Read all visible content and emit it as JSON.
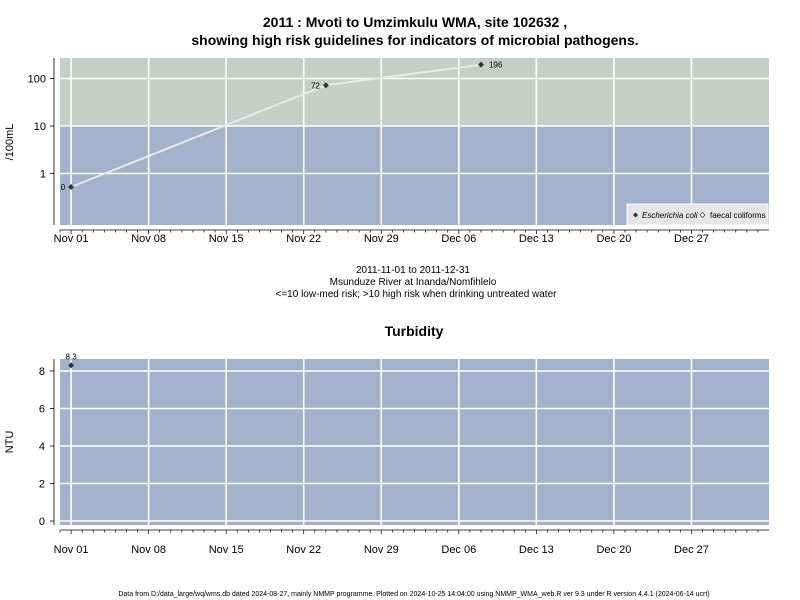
{
  "chart_data": [
    {
      "type": "scatter",
      "title_line1": "2011 : Mvoti to Umzimkulu WMA, site 102632 ,",
      "title_line2": "showing high risk guidelines for indicators of microbial pathogens.",
      "ylabel": "/100mL",
      "y_scale": "log",
      "y_ticks": [
        "1",
        "10",
        "100"
      ],
      "x_ticks": [
        "Nov 01",
        "Nov 08",
        "Nov 15",
        "Nov 22",
        "Nov 29",
        "Dec 06",
        "Dec 13",
        "Dec 20",
        "Dec 27"
      ],
      "x_range": [
        "2011-10-31",
        "2012-01-03"
      ],
      "bands": [
        {
          "label": "low-med risk",
          "range": [
            0,
            10
          ],
          "color": "#a2b2cb"
        },
        {
          "label": "high risk",
          "range": [
            10,
            300
          ],
          "color": "#c5cfc5"
        }
      ],
      "series": [
        {
          "name": "Escherichia coli",
          "points": [
            {
              "x": "2011-11-01",
              "y": 0,
              "label": "0"
            },
            {
              "x": "2011-11-24",
              "y": 72,
              "label": "72"
            },
            {
              "x": "2011-12-08",
              "y": 196,
              "label": "196"
            }
          ]
        },
        {
          "name": "faecal coliforms",
          "points": []
        }
      ],
      "legend": {
        "placement": "bottom-right",
        "items": [
          "Escherichia coli",
          "faecal coliforms"
        ]
      },
      "caption_line1": "2011-11-01 to 2011-12-31",
      "caption_line2": "Msunduze River at Inanda/Nomfihlelo",
      "caption_line3": "<=10 low-med risk; >10 high risk when drinking untreated water"
    },
    {
      "type": "scatter",
      "title": "Turbidity",
      "ylabel": "NTU",
      "ylim": [
        -0.5,
        8.7
      ],
      "y_ticks": [
        "0",
        "2",
        "4",
        "6",
        "8"
      ],
      "x_ticks": [
        "Nov 01",
        "Nov 08",
        "Nov 15",
        "Nov 22",
        "Nov 29",
        "Dec 06",
        "Dec 13",
        "Dec 20",
        "Dec 27"
      ],
      "x_range": [
        "2011-10-31",
        "2012-01-03"
      ],
      "background": "#a2b2cb",
      "series": [
        {
          "points": [
            {
              "x": "2011-11-01",
              "y": 8.3,
              "label": "8.3"
            }
          ]
        }
      ]
    }
  ],
  "footer": "Data from D:/data_large/wq/wms.db dated 2024-08-27, mainly NMMP programme. Plotted on 2024-10-25 14:04:00 using NMMP_WMA_web.R ver 9.3 under R version 4.4.1 (2024-06-14 ucrt)",
  "colors": {
    "low_band": "#a2b2cb",
    "high_band": "#c5cfc5",
    "grid": "#ffffff",
    "line": "#e8e8e8",
    "marker": "#333333"
  }
}
